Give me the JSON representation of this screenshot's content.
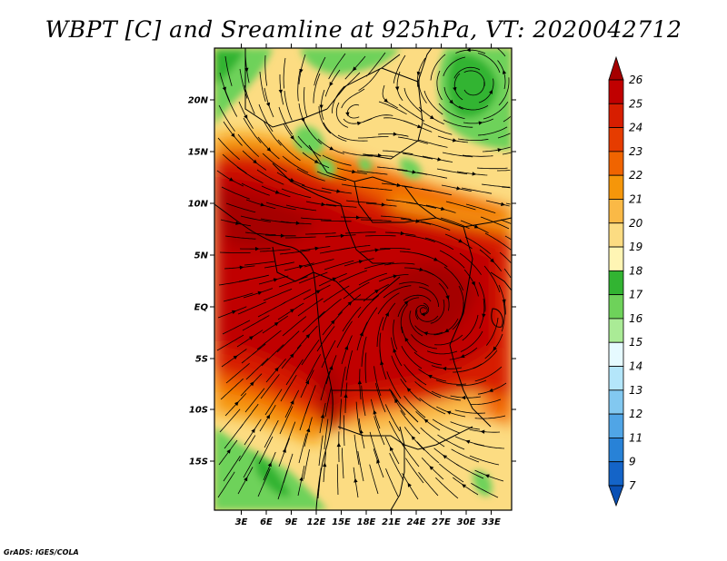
{
  "title": "WBPT [C] and Sreamline at 925hPa, VT: 2020042712",
  "credit": "GrADS: IGES/COLA",
  "map": {
    "lat_labels": [
      "20N",
      "15N",
      "10N",
      "5N",
      "EQ",
      "5S",
      "10S",
      "15S"
    ],
    "lon_labels": [
      "3E",
      "6E",
      "9E",
      "12E",
      "15E",
      "18E",
      "21E",
      "24E",
      "27E",
      "30E",
      "33E"
    ]
  },
  "colorbar": {
    "levels": [
      "26",
      "25",
      "24",
      "23",
      "22",
      "21",
      "20",
      "19",
      "18",
      "17",
      "16",
      "15",
      "14",
      "13",
      "12",
      "11",
      "9",
      "7"
    ],
    "colors": [
      "#a50000",
      "#c00000",
      "#d71e00",
      "#e63c00",
      "#f06400",
      "#f5960a",
      "#fab946",
      "#fcdc82",
      "#fff5b4",
      "#32b432",
      "#6ed25a",
      "#aaeb96",
      "#e6faff",
      "#b4e6fa",
      "#82c8f0",
      "#50a5e6",
      "#2882d7",
      "#1464c8",
      "#0a50b4"
    ]
  }
}
